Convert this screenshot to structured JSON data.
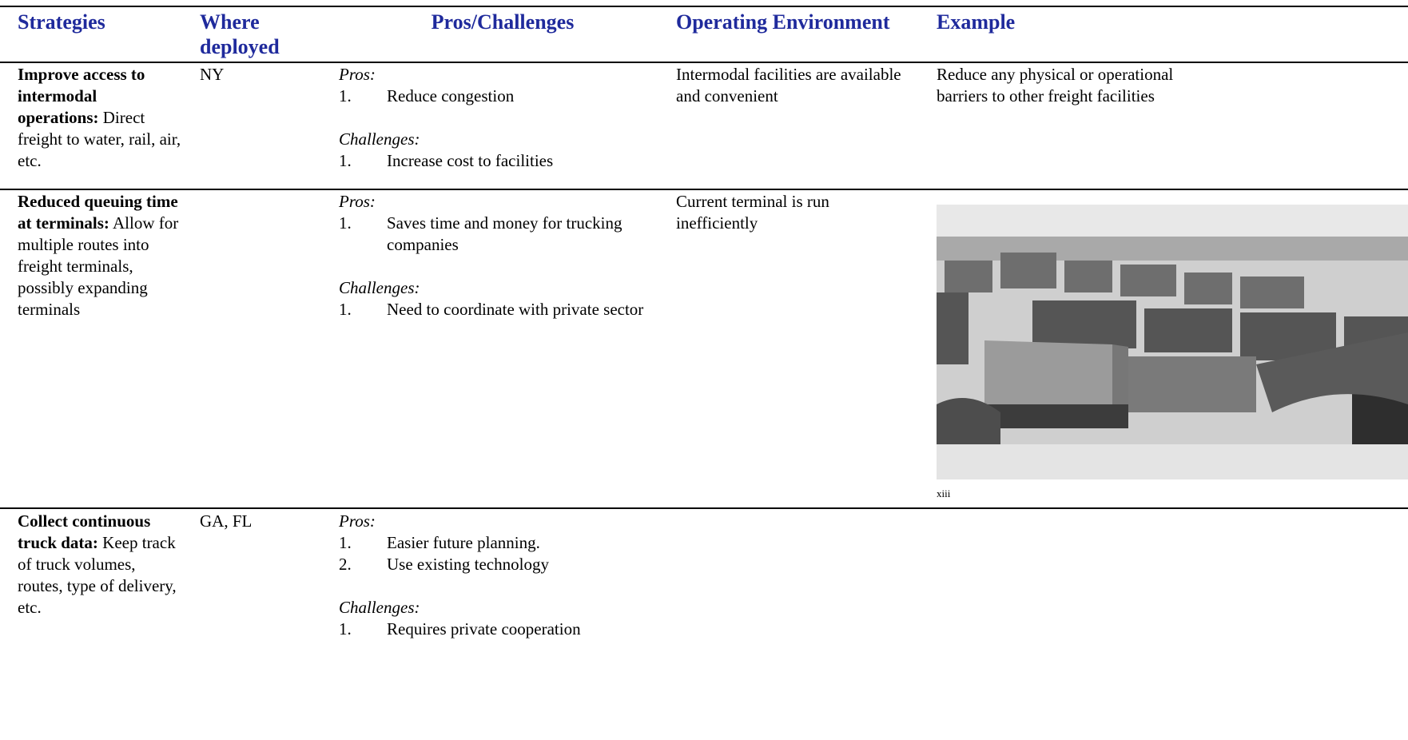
{
  "header": {
    "columns": [
      "Strategies",
      "Where deployed",
      "Pros/Challenges",
      "Operating Environment",
      "Example"
    ]
  },
  "rows": [
    {
      "strategy_title": "Improve access to intermodal operations:",
      "strategy_text": "Direct freight to water, rail, air, etc.",
      "where": "NY",
      "pros_label": "Pros:",
      "pros": [
        "Reduce congestion"
      ],
      "challenges_label": "Challenges:",
      "challenges": [
        "Increase cost to facilities"
      ],
      "environment": "Intermodal facilities are available and convenient",
      "example": "Reduce any physical or operational barriers to other freight facilities"
    },
    {
      "strategy_title": "Reduced queuing time at terminals:",
      "strategy_text": "Allow for multiple routes into freight terminals, possibly expanding terminals",
      "where": null,
      "pros_label": "Pros:",
      "pros": [
        "Saves time and money for trucking companies"
      ],
      "challenges_label": "Challenges:",
      "challenges": [
        "Need to coordinate with private sector"
      ],
      "environment": "Current terminal is run inefficiently",
      "example_caption": "xiii"
    },
    {
      "strategy_title": "Collect continuous truck data:",
      "strategy_text": "Keep track of truck volumes, routes, type of delivery, etc.",
      "where": "GA, FL",
      "pros_label": "Pros:",
      "pros": [
        "Easier future planning.",
        "Use existing technology"
      ],
      "challenges_label": "Challenges:",
      "challenges": [
        "Requires private cooperation"
      ],
      "environment": null
    }
  ]
}
